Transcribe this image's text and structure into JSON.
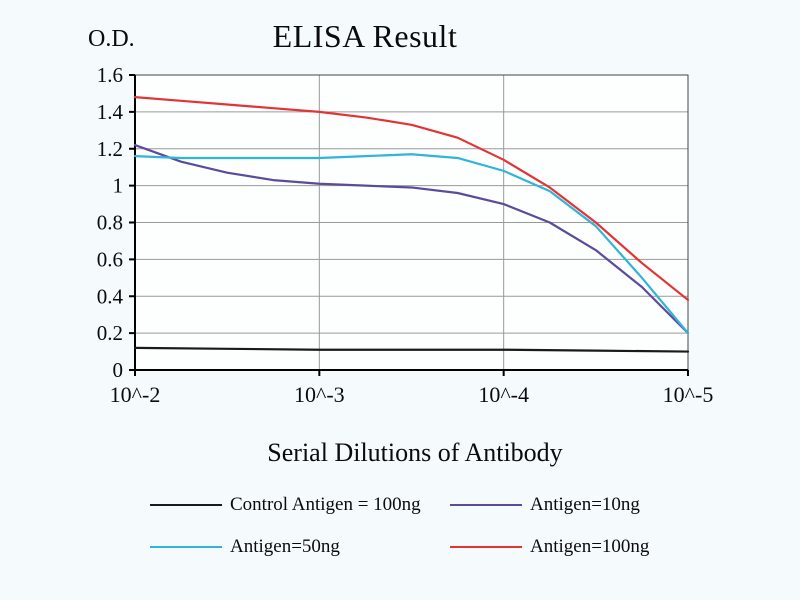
{
  "chart_data": {
    "type": "line",
    "title": "ELISA Result",
    "ylabel": "O.D.",
    "xlabel": "Serial Dilutions of Antibody",
    "x_tick_labels": [
      "10^-2",
      "10^-3",
      "10^-4",
      "10^-5"
    ],
    "y_ticks": [
      0,
      0.2,
      0.4,
      0.6,
      0.8,
      1,
      1.2,
      1.4,
      1.6
    ],
    "y_tick_labels": [
      "0",
      "0.2",
      "0.4",
      "0.6",
      "0.8",
      "1",
      "1.2",
      "1.4",
      "1.6"
    ],
    "ylim": [
      0,
      1.6
    ],
    "xlim": [
      0,
      3
    ],
    "grid": true,
    "legend_position": "bottom",
    "series": [
      {
        "name": "Control Antigen = 100ng",
        "color": "#1a1a1a",
        "x": [
          0,
          0.5,
          1,
          1.5,
          2,
          2.5,
          3
        ],
        "values": [
          0.12,
          0.115,
          0.11,
          0.11,
          0.11,
          0.105,
          0.1
        ]
      },
      {
        "name": "Antigen=10ng",
        "color": "#5c4a9c",
        "x": [
          0,
          0.25,
          0.5,
          0.75,
          1,
          1.25,
          1.5,
          1.75,
          2,
          2.25,
          2.5,
          2.75,
          3
        ],
        "values": [
          1.22,
          1.13,
          1.07,
          1.03,
          1.01,
          1.0,
          0.99,
          0.96,
          0.9,
          0.8,
          0.65,
          0.45,
          0.2
        ]
      },
      {
        "name": "Antigen=50ng",
        "color": "#32b4d8",
        "x": [
          0,
          0.25,
          0.5,
          0.75,
          1,
          1.25,
          1.5,
          1.75,
          2,
          2.25,
          2.5,
          2.75,
          3
        ],
        "values": [
          1.16,
          1.15,
          1.15,
          1.15,
          1.15,
          1.16,
          1.17,
          1.15,
          1.08,
          0.97,
          0.78,
          0.5,
          0.2
        ]
      },
      {
        "name": "Antigen=100ng",
        "color": "#e23434",
        "x": [
          0,
          0.25,
          0.5,
          0.75,
          1,
          1.25,
          1.5,
          1.75,
          2,
          2.25,
          2.5,
          2.75,
          3
        ],
        "values": [
          1.48,
          1.46,
          1.44,
          1.42,
          1.4,
          1.37,
          1.33,
          1.26,
          1.14,
          0.99,
          0.8,
          0.58,
          0.38
        ]
      }
    ]
  }
}
